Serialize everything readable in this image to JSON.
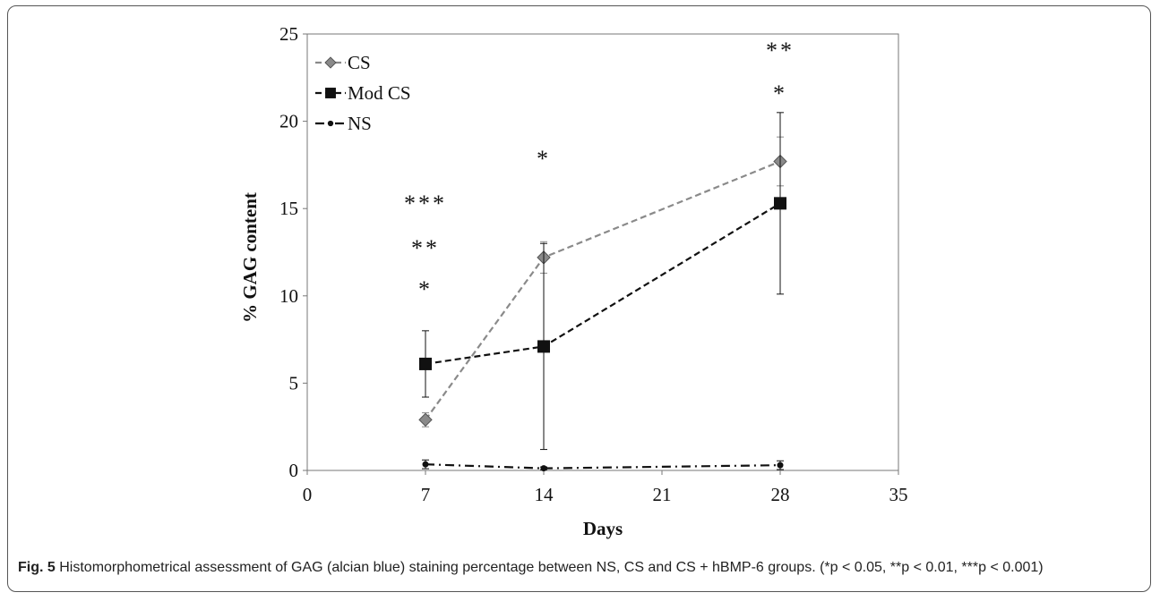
{
  "caption": {
    "label": "Fig. 5",
    "text": "Histomorphometrical assessment of GAG (alcian blue) staining percentage between NS, CS and CS + hBMP-6 groups. (*p < 0.05, **p < 0.01, ***p < 0.001)"
  },
  "chart_data": {
    "type": "line",
    "title": "",
    "xlabel": "Days",
    "ylabel": "% GAG content",
    "xlim": [
      0,
      35
    ],
    "ylim": [
      0,
      25
    ],
    "x_ticks": [
      0,
      7,
      14,
      21,
      28,
      35
    ],
    "y_ticks": [
      0,
      5,
      10,
      15,
      20,
      25
    ],
    "grid": false,
    "legend_position": "top-left",
    "series": [
      {
        "name": "CS",
        "marker": "diamond",
        "line": "dashed",
        "color": "#8a8a8a",
        "x": [
          7,
          14,
          28
        ],
        "y": [
          2.9,
          12.2,
          17.7
        ],
        "error": [
          0.4,
          0.9,
          1.4
        ]
      },
      {
        "name": "Mod CS",
        "marker": "square",
        "line": "dashed",
        "color": "#111111",
        "x": [
          7,
          14,
          28
        ],
        "y": [
          6.1,
          7.1,
          15.3
        ],
        "error": [
          1.9,
          5.9,
          5.2
        ]
      },
      {
        "name": "NS",
        "marker": "circle",
        "line": "dashdot",
        "color": "#111111",
        "x": [
          7,
          14,
          28
        ],
        "y": [
          0.35,
          0.12,
          0.3
        ],
        "error": [
          0.25,
          0.08,
          0.25
        ]
      }
    ],
    "significance": [
      {
        "x": 7,
        "marks": [
          "*",
          "**",
          "***"
        ]
      },
      {
        "x": 14,
        "marks": [
          "*"
        ]
      },
      {
        "x": 28,
        "marks": [
          "*",
          "**"
        ]
      }
    ]
  }
}
